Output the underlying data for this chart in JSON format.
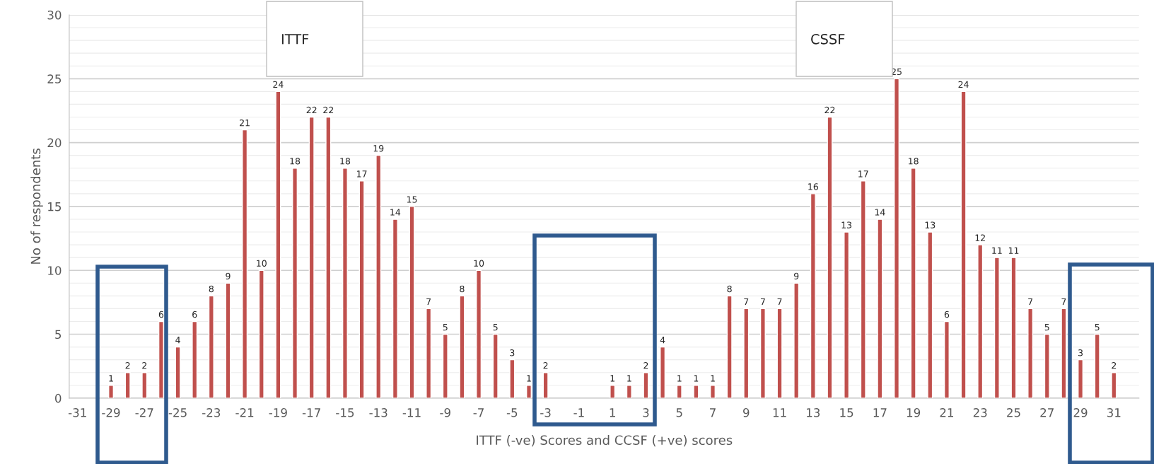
{
  "chart_data": {
    "type": "bar",
    "xlabel": "ITTF (-ve) Scores and CCSF (+ve) scores",
    "ylabel": "No of respondents",
    "annotations": [
      "ITTF",
      "CSSF"
    ],
    "categories": [
      "-31",
      null,
      "-29",
      null,
      "-27",
      null,
      "-25",
      null,
      "-23",
      null,
      "-21",
      null,
      "-19",
      null,
      "-17",
      null,
      "-15",
      null,
      "-13",
      null,
      "-11",
      null,
      "-9",
      null,
      "-7",
      null,
      "-5",
      null,
      "-3",
      null,
      "-1",
      null,
      "1",
      null,
      "3",
      null,
      "5",
      null,
      "7",
      null,
      "9",
      null,
      "11",
      null,
      "13",
      null,
      "15",
      null,
      "17",
      null,
      "19",
      null,
      "21",
      null,
      "23",
      null,
      "25",
      null,
      "27",
      null,
      "29",
      null,
      "31",
      null
    ],
    "values": [
      null,
      null,
      1,
      2,
      2,
      6,
      4,
      6,
      8,
      9,
      21,
      10,
      24,
      18,
      22,
      22,
      18,
      17,
      19,
      14,
      15,
      7,
      5,
      8,
      10,
      5,
      3,
      1,
      2,
      null,
      null,
      null,
      1,
      1,
      2,
      4,
      1,
      1,
      1,
      8,
      7,
      7,
      7,
      9,
      16,
      22,
      13,
      17,
      14,
      25,
      18,
      13,
      6,
      24,
      12,
      11,
      11,
      7,
      5,
      7,
      3,
      5,
      2,
      null
    ],
    "value_labels": [
      null,
      null,
      "1",
      "2",
      "2",
      "6",
      "4",
      "6",
      "8",
      "9",
      "21",
      "10",
      "24",
      "18",
      "22",
      "22",
      "18",
      "17",
      "19",
      "14",
      "15",
      "7",
      "5",
      "8",
      "10",
      "5",
      "3",
      "1",
      "2",
      null,
      null,
      null,
      "1",
      "1",
      "2",
      "4",
      "1",
      "1",
      "1",
      "8",
      "7",
      "7",
      "7",
      "9",
      "16",
      "22",
      "13",
      "17",
      "14",
      "25",
      "18",
      "13",
      "6",
      "24",
      "12",
      "11",
      "11",
      "7",
      "5",
      "7",
      "3",
      "5",
      "2",
      null
    ],
    "color": "#c0504d",
    "ylim": [
      0,
      30
    ],
    "yticks": [
      0,
      5,
      10,
      15,
      20,
      25,
      30
    ],
    "grid": "y",
    "legend": false
  }
}
